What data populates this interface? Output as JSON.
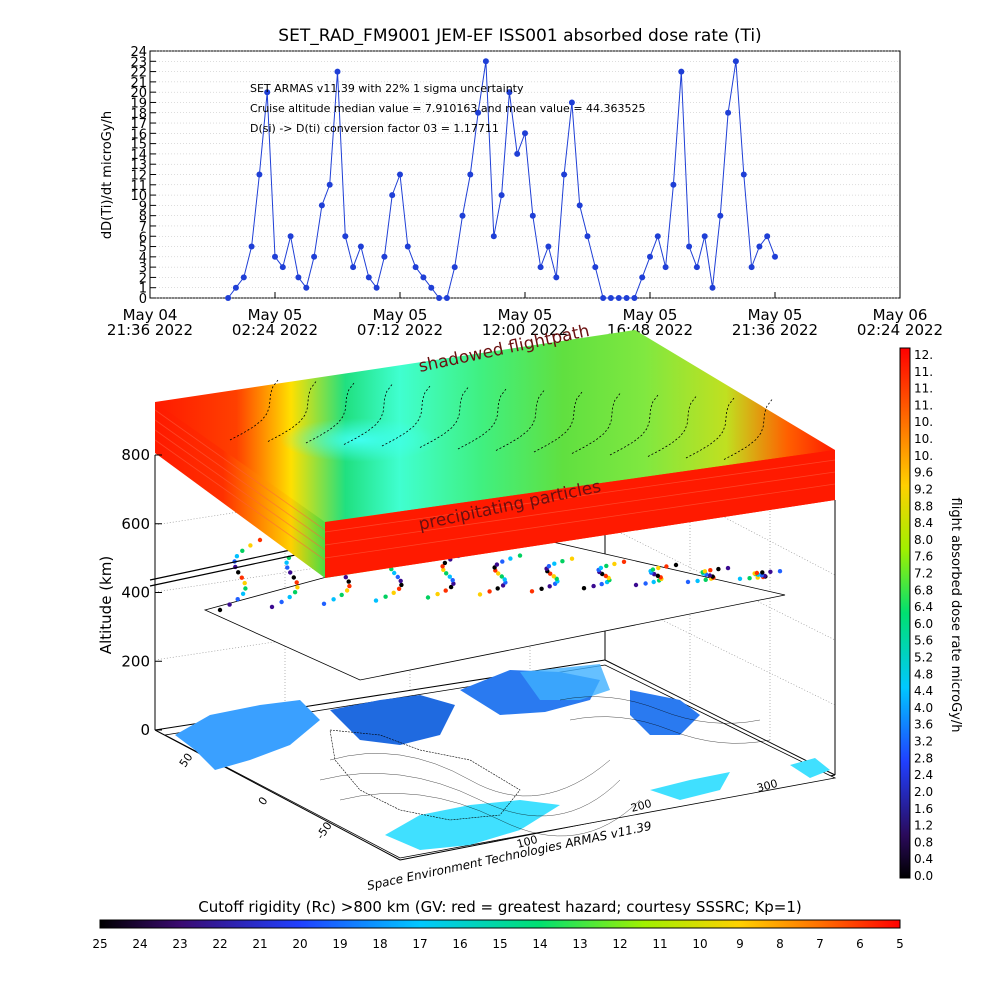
{
  "chart_data": [
    {
      "type": "scatter",
      "title": "SET_RAD_FM9001  JEM-EF ISS001 absorbed dose rate (Ti)",
      "ylabel": "dD(Ti)/dt microGy/h",
      "ylim": [
        0,
        24
      ],
      "yticks": [
        0,
        1,
        2,
        3,
        4,
        5,
        6,
        7,
        8,
        9,
        10,
        11,
        12,
        13,
        14,
        15,
        16,
        17,
        18,
        19,
        20,
        21,
        22,
        23,
        24
      ],
      "xlim": [
        0,
        28.8
      ],
      "xtick_labels": [
        [
          "May 04",
          "21:36 2022"
        ],
        [
          "May 05",
          "02:24 2022"
        ],
        [
          "May 05",
          "07:12 2022"
        ],
        [
          "May 05",
          "12:00 2022"
        ],
        [
          "May 05",
          "16:48 2022"
        ],
        [
          "May 05",
          "21:36 2022"
        ],
        [
          "May 06",
          "02:24 2022"
        ]
      ],
      "annotations": [
        "SET ARMAS v11.39 with 22% 1 sigma uncertainty",
        "Cruise altitude median value = 7.910163 and mean value = 44.363525",
        "D(si) -> D(ti) conversion factor 03 = 1.17711"
      ],
      "series": [
        {
          "color": "#1f3fd6",
          "x_hours_from_start": [
            3.0,
            3.3,
            3.6,
            3.9,
            4.2,
            4.5,
            4.8,
            5.1,
            5.4,
            5.7,
            6.0,
            6.3,
            6.6,
            6.9,
            7.2,
            7.5,
            7.8,
            8.1,
            8.4,
            8.7,
            9.0,
            9.3,
            9.6,
            9.9,
            10.2,
            10.5,
            10.8,
            11.1,
            11.4,
            11.7,
            12.0,
            12.3,
            12.6,
            12.9,
            13.2,
            13.5,
            13.8,
            14.1,
            14.4,
            14.7,
            15.0,
            15.3,
            15.6,
            15.9,
            16.2,
            16.5,
            16.8,
            17.1,
            17.4,
            17.7,
            18.0,
            18.3,
            18.6,
            18.9,
            19.2,
            19.5,
            19.8,
            20.1,
            20.4,
            20.7,
            21.0,
            21.3,
            21.6,
            21.9,
            22.2,
            22.5,
            22.8,
            23.1,
            23.4,
            23.7,
            24.0
          ],
          "values": [
            0,
            1,
            2,
            5,
            12,
            20,
            4,
            3,
            6,
            2,
            1,
            4,
            9,
            11,
            22,
            6,
            3,
            5,
            2,
            1,
            4,
            10,
            12,
            5,
            3,
            2,
            1,
            0,
            0,
            3,
            8,
            12,
            18,
            23,
            6,
            10,
            20,
            14,
            16,
            8,
            3,
            5,
            2,
            12,
            19,
            9,
            6,
            3,
            0,
            0,
            0,
            0,
            0,
            2,
            4,
            6,
            3,
            11,
            22,
            5,
            3,
            6,
            1,
            8,
            18,
            23,
            12,
            3,
            5,
            6,
            4
          ]
        }
      ]
    },
    {
      "type": "heatmap",
      "zlabel": "Altitude (km)",
      "zticks": [
        0,
        200,
        400,
        600,
        800
      ],
      "latitude_ticks": [
        50,
        0,
        -50
      ],
      "longitude_ticks": [
        100,
        200,
        300
      ],
      "annotations": [
        "shadowed flightpath",
        "precipitating particles"
      ],
      "footer": "Space Environment Technologies ARMAS v11.39"
    },
    {
      "type": "colorbar",
      "label": "flight absorbed dose rate microGy/h",
      "tick_labels": [
        "12.",
        "11.",
        "11.",
        "11.",
        "10.",
        "10.",
        "10.",
        "9.6",
        "9.2",
        "8.8",
        "8.4",
        "8.0",
        "7.6",
        "7.2",
        "6.8",
        "6.4",
        "6.0",
        "5.6",
        "5.2",
        "4.8",
        "4.4",
        "4.0",
        "3.6",
        "3.2",
        "2.8",
        "2.4",
        "2.0",
        "1.6",
        "1.2",
        "0.8",
        "0.4",
        "0.0"
      ]
    },
    {
      "type": "colorbar",
      "label": "Cutoff rigidity (Rc) >800 km (GV: red = greatest hazard; courtesy SSSRC; Kp=1)",
      "tick_labels": [
        "25",
        "24",
        "23",
        "22",
        "21",
        "20",
        "19",
        "18",
        "17",
        "16",
        "15",
        "14",
        "13",
        "12",
        "11",
        "10",
        "9",
        "8",
        "7",
        "6",
        "5"
      ]
    }
  ]
}
